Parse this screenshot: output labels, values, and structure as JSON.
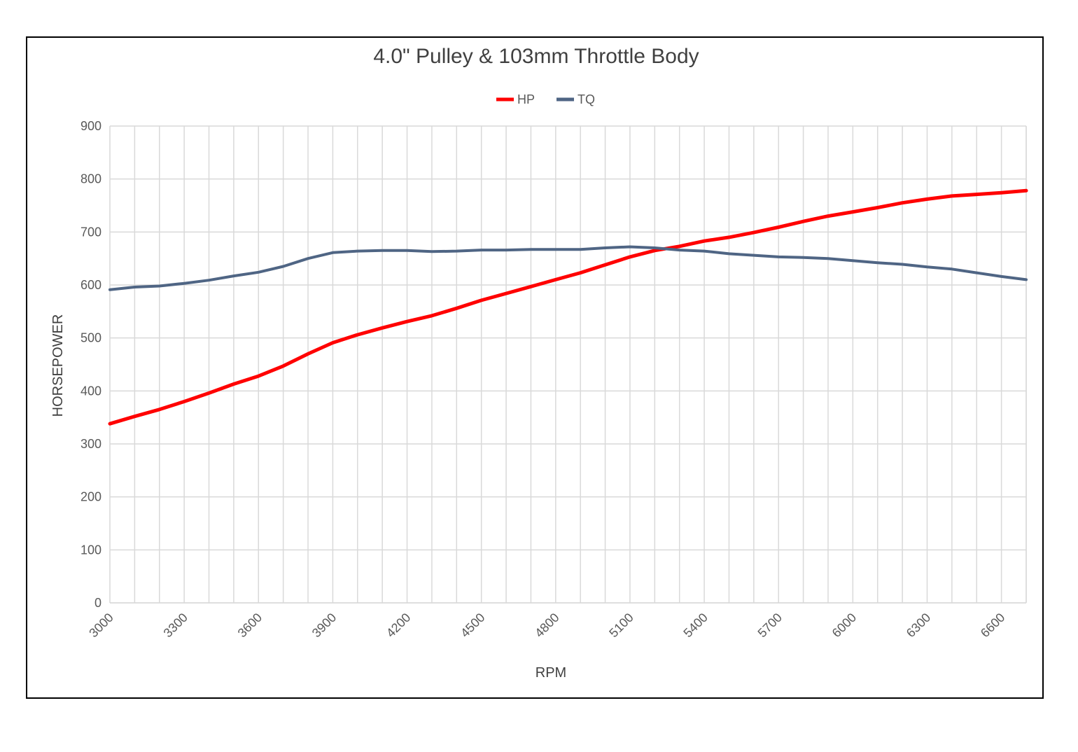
{
  "chart_data": {
    "type": "line",
    "title": "4.0\" Pulley & 103mm Throttle Body",
    "xlabel": "RPM",
    "ylabel": "HORSEPOWER",
    "ylim": [
      0,
      900
    ],
    "yticks": [
      0,
      100,
      200,
      300,
      400,
      500,
      600,
      700,
      800,
      900
    ],
    "xlim": [
      3000,
      6700
    ],
    "xtick_labels": [
      "3000",
      "3300",
      "3600",
      "3900",
      "4200",
      "4500",
      "4800",
      "5100",
      "5400",
      "5700",
      "6000",
      "6300",
      "6600"
    ],
    "grid": true,
    "legend_position": "top",
    "x": [
      3000,
      3100,
      3200,
      3300,
      3400,
      3500,
      3600,
      3700,
      3800,
      3900,
      4000,
      4100,
      4200,
      4300,
      4400,
      4500,
      4600,
      4700,
      4800,
      4900,
      5000,
      5100,
      5200,
      5300,
      5400,
      5500,
      5600,
      5700,
      5800,
      5900,
      6000,
      6100,
      6200,
      6300,
      6400,
      6500,
      6600,
      6700
    ],
    "series": [
      {
        "name": "HP",
        "color": "#ff0000",
        "values": [
          338,
          352,
          365,
          380,
          396,
          413,
          428,
          447,
          470,
          491,
          506,
          519,
          531,
          542,
          556,
          571,
          584,
          597,
          610,
          623,
          638,
          653,
          665,
          673,
          683,
          690,
          699,
          709,
          720,
          730,
          738,
          746,
          755,
          762,
          768,
          771,
          774,
          778
        ]
      },
      {
        "name": "TQ",
        "color": "#4f6584",
        "values": [
          591,
          596,
          598,
          603,
          609,
          617,
          624,
          635,
          650,
          661,
          664,
          665,
          665,
          663,
          664,
          666,
          666,
          667,
          667,
          667,
          670,
          672,
          670,
          666,
          664,
          659,
          656,
          653,
          652,
          650,
          646,
          642,
          639,
          634,
          630,
          623,
          616,
          610
        ]
      }
    ]
  }
}
